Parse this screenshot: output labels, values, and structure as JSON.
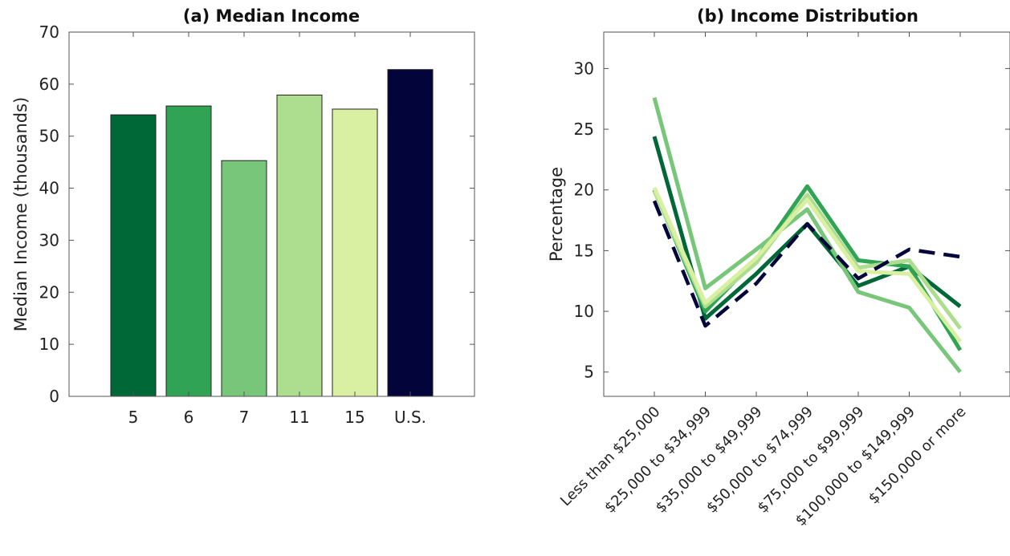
{
  "chart_data": [
    {
      "type": "bar",
      "title": "(a) Median Income",
      "ylabel": "Median Income (thousands)",
      "xlabel": "",
      "categories": [
        "5",
        "6",
        "7",
        "11",
        "15",
        "U.S."
      ],
      "values": [
        54.1,
        55.8,
        45.3,
        57.9,
        55.2,
        62.8
      ],
      "colors": [
        "#006837",
        "#31a354",
        "#78c679",
        "#addd8e",
        "#d9f0a3",
        "#03053a"
      ],
      "ylim": [
        0,
        70
      ],
      "yticks": [
        "0",
        "10",
        "20",
        "30",
        "40",
        "50",
        "60",
        "70"
      ],
      "grid": false
    },
    {
      "type": "line",
      "title": "(b) Income Distribution",
      "ylabel": "Percentage",
      "xlabel": "",
      "categories": [
        "Less than $25,000",
        "$25,000 to $34,999",
        "$35,000 to $49,999",
        "$50,000 to $74,999",
        "$75,000 to $99,999",
        "$100,000 to $149,999",
        "$150,000 or more"
      ],
      "ylim": [
        3,
        33
      ],
      "yticks": [
        "5",
        "10",
        "15",
        "20",
        "25",
        "30"
      ],
      "grid": false,
      "series": [
        {
          "values": [
            24.4,
            9.4,
            13.1,
            17.2,
            12.1,
            13.7,
            10.4
          ],
          "color": "#006837",
          "dash": false
        },
        {
          "values": [
            20.0,
            10.0,
            14.3,
            20.3,
            14.2,
            13.7,
            6.8
          ],
          "color": "#31a354",
          "dash": false
        },
        {
          "values": [
            27.6,
            11.9,
            15.1,
            18.4,
            11.6,
            10.3,
            5.0
          ],
          "color": "#78c679",
          "dash": false
        },
        {
          "values": [
            19.9,
            10.4,
            14.0,
            19.6,
            13.6,
            14.2,
            8.6
          ],
          "color": "#addd8e",
          "dash": false
        },
        {
          "values": [
            20.2,
            10.7,
            14.4,
            19.2,
            13.3,
            13.1,
            7.5
          ],
          "color": "#d9f0a3",
          "dash": false
        },
        {
          "values": [
            19.1,
            8.8,
            12.3,
            17.2,
            12.7,
            15.1,
            14.5
          ],
          "color": "#03053a",
          "dash": true
        }
      ]
    }
  ]
}
